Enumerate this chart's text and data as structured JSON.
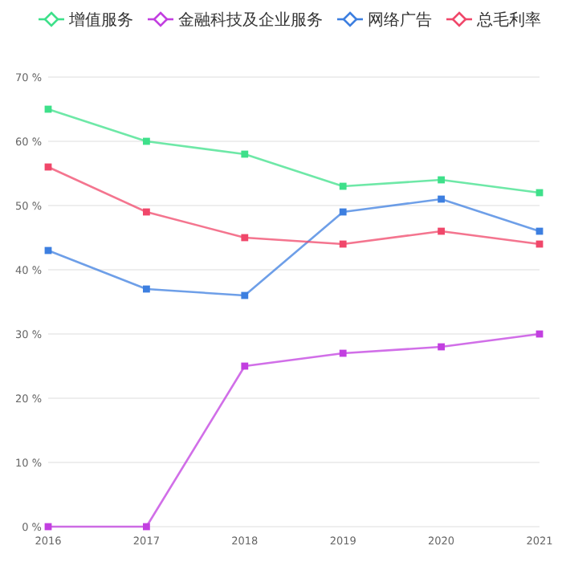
{
  "chart_data": {
    "type": "line",
    "categories": [
      "2016",
      "2017",
      "2018",
      "2019",
      "2020",
      "2021"
    ],
    "series": [
      {
        "name": "增值服务",
        "color": "#3ee08a",
        "values": [
          65,
          60,
          58,
          53,
          54,
          52
        ]
      },
      {
        "name": "金融科技及企业服务",
        "color": "#c23fe0",
        "values": [
          0,
          0,
          25,
          27,
          28,
          30
        ]
      },
      {
        "name": "网络广告",
        "color": "#3d7fe0",
        "values": [
          43,
          37,
          36,
          49,
          51,
          46
        ]
      },
      {
        "name": "总毛利率",
        "color": "#f0476a",
        "values": [
          56,
          49,
          45,
          44,
          46,
          44
        ]
      }
    ],
    "ylim": [
      0,
      70
    ],
    "yticks": [
      {
        "value": 0,
        "label": "0 %"
      },
      {
        "value": 10,
        "label": "10 %"
      },
      {
        "value": 20,
        "label": "20 %"
      },
      {
        "value": 30,
        "label": "30 %"
      },
      {
        "value": 40,
        "label": "40 %"
      },
      {
        "value": 50,
        "label": "50 %"
      },
      {
        "value": 60,
        "label": "60 %"
      },
      {
        "value": 70,
        "label": "70 %"
      }
    ],
    "grid": "y",
    "legend": "top right",
    "marker": "square",
    "line_style": "solid"
  }
}
